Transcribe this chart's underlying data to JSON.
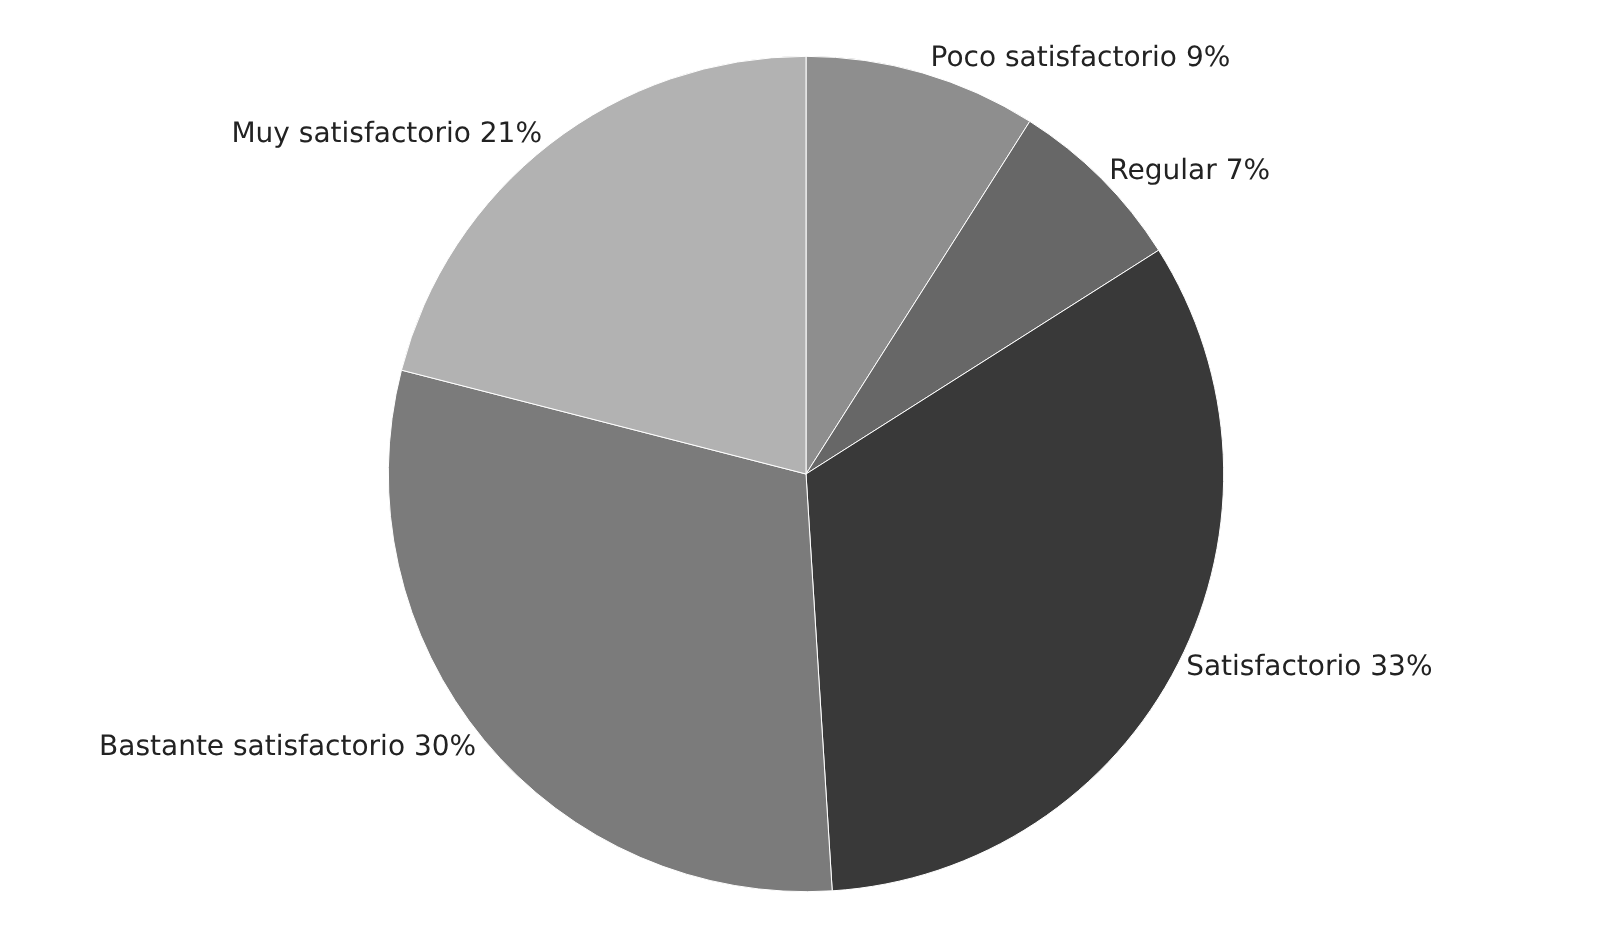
{
  "chart_data": {
    "type": "pie",
    "categories": [
      "Poco satisfactorio",
      "Regular",
      "Satisfactorio",
      "Bastante satisfactorio",
      "Muy satisfactorio"
    ],
    "values": [
      9,
      7,
      33,
      30,
      21
    ],
    "value_labels": [
      "9%",
      "7%",
      "33%",
      "30%",
      "21%"
    ],
    "colors": [
      "#8e8e8e",
      "#676767",
      "#393939",
      "#7b7b7b",
      "#b2b2b2"
    ],
    "legend": false
  }
}
